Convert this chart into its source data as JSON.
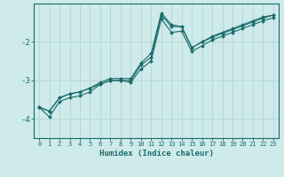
{
  "xlabel": "Humidex (Indice chaleur)",
  "background_color": "#ceeaea",
  "grid_color": "#b8d8d8",
  "line_color": "#1a6b6b",
  "x": [
    0,
    1,
    2,
    3,
    4,
    5,
    6,
    7,
    8,
    9,
    10,
    11,
    12,
    13,
    14,
    15,
    16,
    17,
    18,
    19,
    20,
    21,
    22,
    23
  ],
  "lines": [
    [
      -3.7,
      -3.8,
      -3.45,
      -3.35,
      -3.3,
      -3.2,
      -3.05,
      -2.95,
      -2.95,
      -2.95,
      -2.55,
      -2.3,
      -1.25,
      -1.55,
      -1.6,
      -2.15,
      -2.0,
      -1.85,
      -1.75,
      -1.65,
      -1.55,
      -1.45,
      -1.35,
      -1.3
    ],
    [
      -3.7,
      -3.8,
      -3.45,
      -3.35,
      -3.3,
      -3.2,
      -3.1,
      -3.0,
      -3.0,
      -3.0,
      -2.6,
      -2.4,
      -1.3,
      -1.6,
      -1.6,
      -2.15,
      -2.0,
      -1.88,
      -1.78,
      -1.68,
      -1.58,
      -1.48,
      -1.38,
      -1.3
    ],
    [
      -3.7,
      -3.95,
      -3.55,
      -3.45,
      -3.4,
      -3.3,
      -3.1,
      -3.0,
      -3.0,
      -3.05,
      -2.7,
      -2.5,
      -1.4,
      -1.75,
      -1.72,
      -2.25,
      -2.1,
      -1.95,
      -1.85,
      -1.75,
      -1.65,
      -1.55,
      -1.45,
      -1.37
    ]
  ],
  "xlim": [
    -0.5,
    23.5
  ],
  "ylim": [
    -4.5,
    -1.0
  ],
  "yticks": [
    -4,
    -3,
    -2
  ],
  "xticks": [
    0,
    1,
    2,
    3,
    4,
    5,
    6,
    7,
    8,
    9,
    10,
    11,
    12,
    13,
    14,
    15,
    16,
    17,
    18,
    19,
    20,
    21,
    22,
    23
  ],
  "figsize": [
    3.2,
    2.0
  ],
  "dpi": 100
}
